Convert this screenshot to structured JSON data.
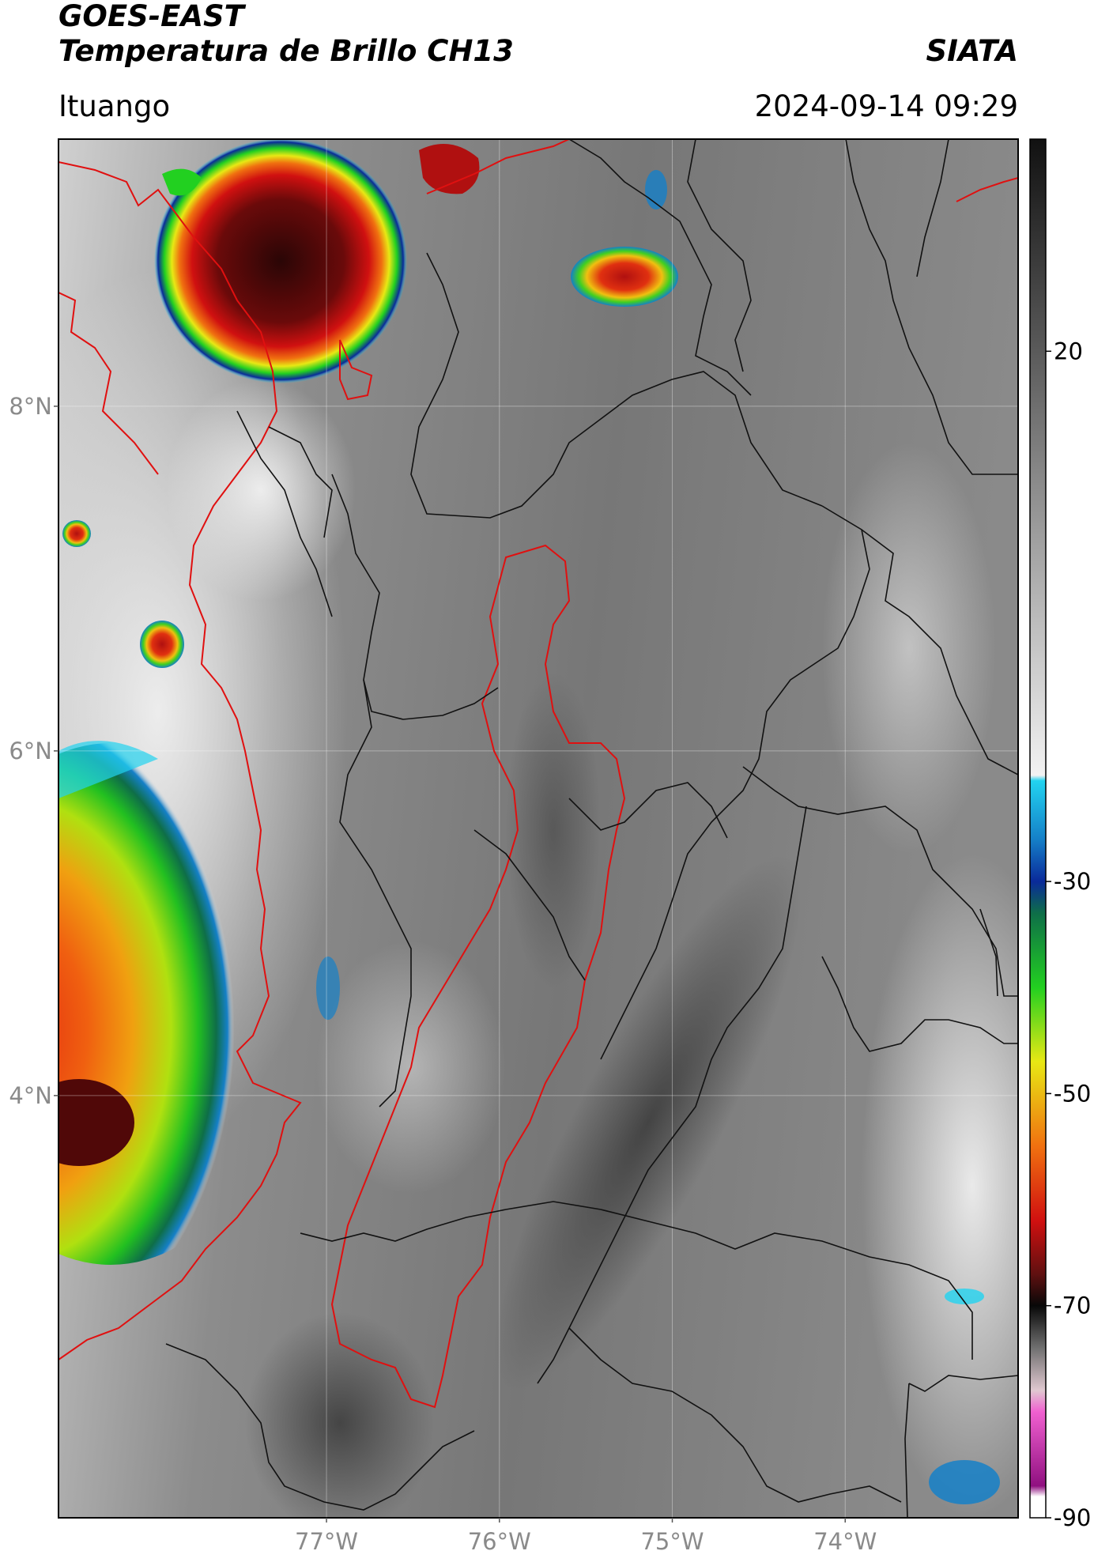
{
  "header": {
    "satellite": "GOES-EAST",
    "product": "Temperatura de Brillo CH13",
    "organization": "SIATA",
    "location": "Ituango",
    "timestamp": "2024-09-14 09:29"
  },
  "map": {
    "lon_range": [
      -78.55,
      -73.0
    ],
    "lat_range": [
      1.55,
      9.55
    ],
    "lat_ticks": [
      {
        "value": 8,
        "label": "8°N"
      },
      {
        "value": 6,
        "label": "6°N"
      },
      {
        "value": 4,
        "label": "4°N"
      }
    ],
    "lon_ticks": [
      {
        "value": -77,
        "label": "77°W"
      },
      {
        "value": -76,
        "label": "76°W"
      },
      {
        "value": -75,
        "label": "75°W"
      },
      {
        "value": -74,
        "label": "74°W"
      }
    ],
    "coastline_color": "#e01010",
    "border_color": "#111111",
    "gridlines": true
  },
  "colorbar": {
    "range": [
      -90,
      40
    ],
    "ticks": [
      {
        "value": 20,
        "label": "20"
      },
      {
        "value": -30,
        "label": "-30"
      },
      {
        "value": -50,
        "label": "-50"
      },
      {
        "value": -70,
        "label": "-70"
      },
      {
        "value": -90,
        "label": "-90"
      }
    ],
    "stops": [
      {
        "value": 40,
        "color": "#111111"
      },
      {
        "value": 20,
        "color": "#5a5a5a"
      },
      {
        "value": 0,
        "color": "#a8a8a8"
      },
      {
        "value": -20,
        "color": "#f2f2f2"
      },
      {
        "value": -20.5,
        "color": "#22d3f0"
      },
      {
        "value": -26,
        "color": "#1580c8"
      },
      {
        "value": -30,
        "color": "#0a2a9a"
      },
      {
        "value": -33,
        "color": "#0e6e48"
      },
      {
        "value": -40,
        "color": "#22d020"
      },
      {
        "value": -47,
        "color": "#e8e814"
      },
      {
        "value": -55,
        "color": "#f07010"
      },
      {
        "value": -62,
        "color": "#d01010"
      },
      {
        "value": -67,
        "color": "#601010"
      },
      {
        "value": -70,
        "color": "#080808"
      },
      {
        "value": -74,
        "color": "#707070"
      },
      {
        "value": -78,
        "color": "#e0c8d0"
      },
      {
        "value": -80,
        "color": "#f060d0"
      },
      {
        "value": -87,
        "color": "#901080"
      },
      {
        "value": -88,
        "color": "#ffffff"
      },
      {
        "value": -90,
        "color": "#ffffff"
      }
    ]
  }
}
